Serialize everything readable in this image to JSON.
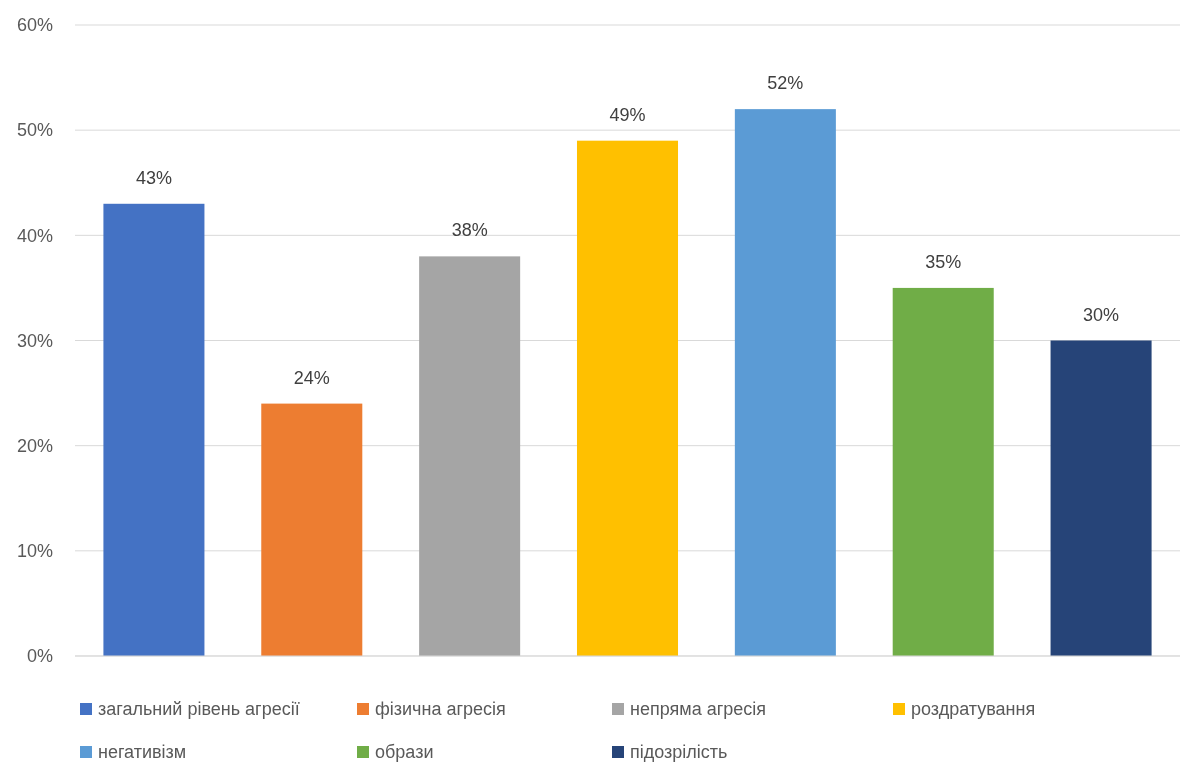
{
  "chart_data": {
    "type": "bar",
    "categories": [
      null
    ],
    "series": [
      {
        "name": "загальний рівень агресії",
        "color": "#4472c4",
        "values": [
          43
        ],
        "value_labels": [
          "43%"
        ]
      },
      {
        "name": "фізична агресія",
        "color": "#ed7d31",
        "values": [
          24
        ],
        "value_labels": [
          "24%"
        ]
      },
      {
        "name": "непряма агресія",
        "color": "#a5a5a5",
        "values": [
          38
        ],
        "value_labels": [
          "38%"
        ]
      },
      {
        "name": "роздратування",
        "color": "#ffc000",
        "values": [
          49
        ],
        "value_labels": [
          "49%"
        ]
      },
      {
        "name": "негативізм",
        "color": "#5b9bd5",
        "values": [
          52
        ],
        "value_labels": [
          "52%"
        ]
      },
      {
        "name": "образи",
        "color": "#70ad47",
        "values": [
          35
        ],
        "value_labels": [
          "35%"
        ]
      },
      {
        "name": "підозрілість",
        "color": "#264478",
        "values": [
          30
        ],
        "value_labels": [
          "30%"
        ]
      }
    ],
    "ylim": [
      0,
      60
    ],
    "yticks": [
      {
        "value": 0,
        "label": "0%"
      },
      {
        "value": 10,
        "label": "10%"
      },
      {
        "value": 20,
        "label": "20%"
      },
      {
        "value": 30,
        "label": "30%"
      },
      {
        "value": 40,
        "label": "40%"
      },
      {
        "value": 50,
        "label": "50%"
      },
      {
        "value": 60,
        "label": "60%"
      }
    ],
    "grid": "y",
    "legend": "bottom"
  }
}
